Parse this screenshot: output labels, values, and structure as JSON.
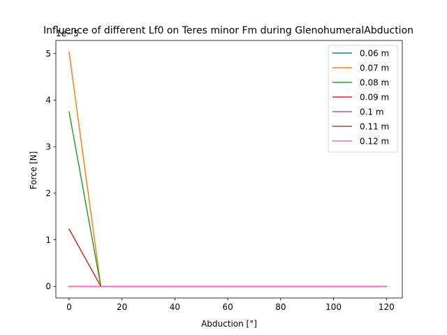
{
  "chart_data": {
    "type": "line",
    "title": "Influence of different Lf0 on Teres minor Fm during GlenohumeralAbduction",
    "xlabel": "Abduction [°]",
    "ylabel": "Force [N]",
    "y_offset_label": "1e−5",
    "xlim": [
      -5,
      126
    ],
    "ylim": [
      -0.25,
      5.28
    ],
    "xticks": [
      0,
      20,
      40,
      60,
      80,
      100,
      120
    ],
    "yticks": [
      0,
      1,
      2,
      3,
      4,
      5
    ],
    "grid": false,
    "legend_position": "top-right",
    "series": [
      {
        "name": "0.06 m",
        "color": "#1f77b4",
        "x": [
          0,
          12,
          120
        ],
        "y": [
          0,
          0,
          0
        ]
      },
      {
        "name": "0.07 m",
        "color": "#ff7f0e",
        "x": [
          0,
          12,
          120
        ],
        "y": [
          5.03,
          0,
          0
        ]
      },
      {
        "name": "0.08 m",
        "color": "#2ca02c",
        "x": [
          0,
          12,
          120
        ],
        "y": [
          3.75,
          0,
          0
        ]
      },
      {
        "name": "0.09 m",
        "color": "#d62728",
        "x": [
          0,
          12,
          120
        ],
        "y": [
          1.23,
          0,
          0
        ]
      },
      {
        "name": "0.1 m",
        "color": "#9467bd",
        "x": [
          0,
          12,
          120
        ],
        "y": [
          0,
          0,
          0
        ]
      },
      {
        "name": "0.11 m",
        "color": "#8c564b",
        "x": [
          0,
          12,
          120
        ],
        "y": [
          0,
          0,
          0
        ]
      },
      {
        "name": "0.12 m",
        "color": "#e377c2",
        "x": [
          0,
          12,
          120
        ],
        "y": [
          0,
          0,
          0
        ]
      }
    ]
  }
}
